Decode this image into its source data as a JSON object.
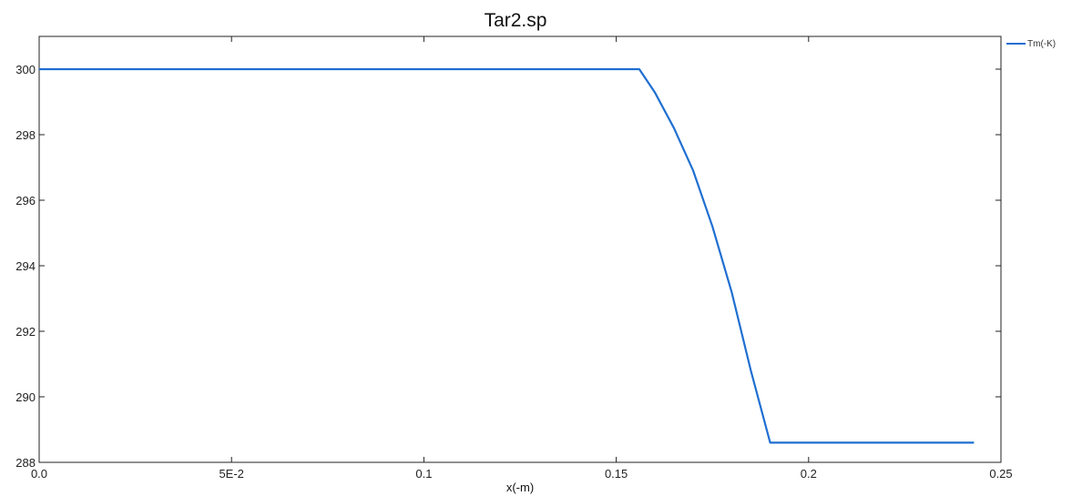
{
  "chart_data": {
    "type": "line",
    "title": "Tar2.sp",
    "xlabel": "x(-m)",
    "ylabel": "",
    "xlim": [
      0,
      0.25
    ],
    "ylim": [
      288,
      301
    ],
    "x_ticks": [
      0,
      0.05,
      0.1,
      0.15,
      0.2,
      0.25
    ],
    "x_tick_labels": [
      "0.0",
      "5E-2",
      "0.1",
      "0.15",
      "0.2",
      "0.25"
    ],
    "y_ticks": [
      288,
      290,
      292,
      294,
      296,
      298,
      300
    ],
    "y_tick_labels": [
      "288",
      "290",
      "292",
      "294",
      "296",
      "298",
      "300"
    ],
    "grid": false,
    "legend_position": "top-right",
    "series": [
      {
        "name": "Tm(-K)",
        "color": "#1f6fd1",
        "x": [
          0,
          0.156,
          0.16,
          0.165,
          0.17,
          0.175,
          0.18,
          0.185,
          0.19,
          0.191,
          0.243
        ],
        "y": [
          300,
          300,
          299.3,
          298.2,
          296.9,
          295.2,
          293.2,
          290.8,
          288.6,
          288.6,
          288.6
        ]
      }
    ]
  }
}
